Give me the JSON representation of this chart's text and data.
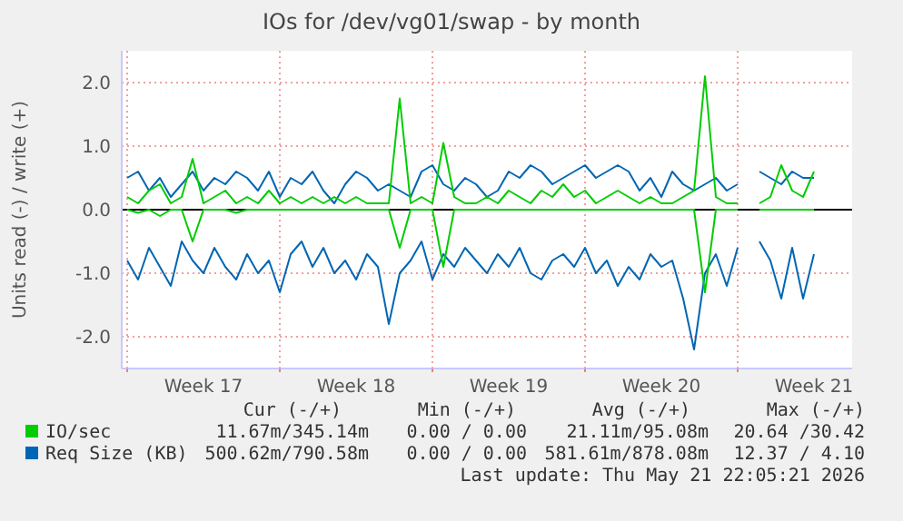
{
  "chart_data": {
    "type": "line",
    "title": "IOs for /dev/vg01/swap - by month",
    "ylabel": "Units read (-) / write (+)",
    "x": [
      "2026-04-20T00:00",
      "2026-04-20T12:00",
      "2026-04-21T00:00",
      "2026-04-21T12:00",
      "2026-04-22T00:00",
      "2026-04-22T12:00",
      "2026-04-23T00:00",
      "2026-04-23T12:00",
      "2026-04-24T00:00",
      "2026-04-24T12:00",
      "2026-04-25T00:00",
      "2026-04-25T12:00",
      "2026-04-26T00:00",
      "2026-04-26T12:00",
      "2026-04-27T00:00",
      "2026-04-27T12:00",
      "2026-04-28T00:00",
      "2026-04-28T12:00",
      "2026-04-29T00:00",
      "2026-04-29T12:00",
      "2026-04-30T00:00",
      "2026-04-30T12:00",
      "2026-05-01T00:00",
      "2026-05-01T12:00",
      "2026-05-02T00:00",
      "2026-05-02T12:00",
      "2026-05-03T00:00",
      "2026-05-03T12:00",
      "2026-05-04T00:00",
      "2026-05-04T12:00",
      "2026-05-05T00:00",
      "2026-05-05T12:00",
      "2026-05-06T00:00",
      "2026-05-06T12:00",
      "2026-05-07T00:00",
      "2026-05-07T12:00",
      "2026-05-08T00:00",
      "2026-05-08T12:00",
      "2026-05-09T00:00",
      "2026-05-09T12:00",
      "2026-05-10T00:00",
      "2026-05-10T12:00",
      "2026-05-11T00:00",
      "2026-05-11T12:00",
      "2026-05-12T00:00",
      "2026-05-12T12:00",
      "2026-05-13T00:00",
      "2026-05-13T12:00",
      "2026-05-14T00:00",
      "2026-05-14T12:00",
      "2026-05-15T00:00",
      "2026-05-15T12:00",
      "2026-05-16T00:00",
      "2026-05-16T12:00",
      "2026-05-17T00:00",
      "2026-05-17T12:00",
      "2026-05-18T00:00",
      "2026-05-18T12:00",
      "2026-05-19T00:00",
      "2026-05-19T12:00",
      "2026-05-20T00:00",
      "2026-05-20T12:00",
      "2026-05-21T00:00",
      "2026-05-21T12:00"
    ],
    "xlim": [
      "2026-04-19T18:00",
      "2026-05-23T06:00"
    ],
    "xticks": [
      {
        "value": "2026-04-20T00:00",
        "label": null
      },
      {
        "value": "2026-04-23T12:00",
        "label": "Week 17"
      },
      {
        "value": "2026-04-27T00:00",
        "label": null
      },
      {
        "value": "2026-04-30T12:00",
        "label": "Week 18"
      },
      {
        "value": "2026-05-04T00:00",
        "label": null
      },
      {
        "value": "2026-05-07T12:00",
        "label": "Week 19"
      },
      {
        "value": "2026-05-11T00:00",
        "label": null
      },
      {
        "value": "2026-05-14T12:00",
        "label": "Week 20"
      },
      {
        "value": "2026-05-18T00:00",
        "label": null
      },
      {
        "value": "2026-05-21T12:00",
        "label": "Week 21"
      }
    ],
    "ylim": [
      -2.5,
      2.5
    ],
    "yticks": [
      {
        "value": -2,
        "label": "-2.0"
      },
      {
        "value": -1,
        "label": "-1.0"
      },
      {
        "value": 0,
        "label": "0.0"
      },
      {
        "value": 1,
        "label": "1.0"
      },
      {
        "value": 2,
        "label": "2.0"
      }
    ],
    "grid": true,
    "legend": "bottom",
    "line_style": "solid",
    "ref_lines": [
      {
        "axis": "y",
        "value": 0,
        "color": "#000000"
      }
    ],
    "series": [
      {
        "color": "#0066b3",
        "values": [
          -0.8,
          -1.1,
          -0.6,
          -0.9,
          -1.2,
          -0.5,
          -0.8,
          -1.0,
          -0.6,
          -0.9,
          -1.1,
          -0.7,
          -1.0,
          -0.8,
          -1.3,
          -0.7,
          -0.5,
          -0.9,
          -0.6,
          -1.0,
          -0.8,
          -1.1,
          -0.7,
          -0.9,
          -1.8,
          -1.0,
          -0.8,
          -0.5,
          -1.1,
          -0.7,
          -0.9,
          -0.6,
          -0.8,
          -1.0,
          -0.7,
          -0.9,
          -0.6,
          -1.0,
          -1.1,
          -0.8,
          -0.7,
          -0.9,
          -0.6,
          -1.0,
          -0.8,
          -1.2,
          -0.9,
          -1.1,
          -0.7,
          -0.9,
          -0.8,
          -1.4,
          -2.2,
          -1.0,
          -0.7,
          -1.2,
          -0.6,
          null,
          -0.5,
          -0.8,
          -1.4,
          -0.6,
          -1.4,
          -0.7
        ]
      },
      {
        "name": "Req Size (KB)",
        "color": "#0066b3",
        "values": [
          0.5,
          0.6,
          0.3,
          0.5,
          0.2,
          0.4,
          0.6,
          0.3,
          0.5,
          0.4,
          0.6,
          0.5,
          0.3,
          0.6,
          0.2,
          0.5,
          0.4,
          0.6,
          0.3,
          0.1,
          0.4,
          0.6,
          0.5,
          0.3,
          0.4,
          0.3,
          0.2,
          0.6,
          0.7,
          0.4,
          0.3,
          0.5,
          0.4,
          0.2,
          0.3,
          0.6,
          0.5,
          0.7,
          0.6,
          0.4,
          0.5,
          0.6,
          0.7,
          0.5,
          0.6,
          0.7,
          0.6,
          0.3,
          0.5,
          0.2,
          0.6,
          0.4,
          0.3,
          0.4,
          0.5,
          0.3,
          0.4,
          null,
          0.6,
          0.5,
          0.4,
          0.6,
          0.5,
          0.5
        ]
      },
      {
        "color": "#00cc00",
        "values": [
          0,
          -0.05,
          0,
          -0.1,
          0,
          0,
          -0.5,
          0,
          0,
          0,
          -0.05,
          0,
          0,
          0,
          0,
          0,
          0,
          0,
          0,
          0,
          0,
          0,
          0,
          0,
          0,
          -0.6,
          0,
          0,
          0,
          -0.9,
          0,
          0,
          0,
          0,
          0,
          0,
          0,
          0,
          0,
          0,
          0,
          0,
          0,
          0,
          0,
          0,
          0,
          0,
          0,
          0,
          0,
          0,
          0,
          -1.3,
          0,
          0,
          0,
          null,
          0,
          0,
          0,
          0,
          0,
          0
        ]
      },
      {
        "name": "IO/sec",
        "color": "#00cc00",
        "values": [
          0.2,
          0.1,
          0.3,
          0.4,
          0.1,
          0.2,
          0.8,
          0.1,
          0.2,
          0.3,
          0.1,
          0.2,
          0.1,
          0.3,
          0.1,
          0.2,
          0.1,
          0.2,
          0.1,
          0.2,
          0.1,
          0.2,
          0.1,
          0.1,
          0.1,
          1.75,
          0.1,
          0.2,
          0.1,
          1.05,
          0.2,
          0.1,
          0.1,
          0.2,
          0.1,
          0.3,
          0.2,
          0.1,
          0.3,
          0.2,
          0.4,
          0.2,
          0.3,
          0.1,
          0.2,
          0.3,
          0.2,
          0.1,
          0.2,
          0.1,
          0.1,
          0.2,
          0.3,
          2.1,
          0.2,
          0.1,
          0.1,
          null,
          0.1,
          0.2,
          0.7,
          0.3,
          0.2,
          0.6
        ]
      }
    ],
    "annotations": [
      "Cur (-/+)",
      "Min (-/+)",
      "Avg (-/+)",
      "Max (-/+)",
      "11.67m/345.14m",
      "0.00 / 0.00",
      "21.11m/95.08m",
      "20.64 /30.42",
      "500.62m/790.58m",
      "0.00 / 0.00",
      "581.61m/878.08m",
      "12.37 / 4.10",
      "Last update: Thu May 21 22:05:21 2026"
    ]
  }
}
